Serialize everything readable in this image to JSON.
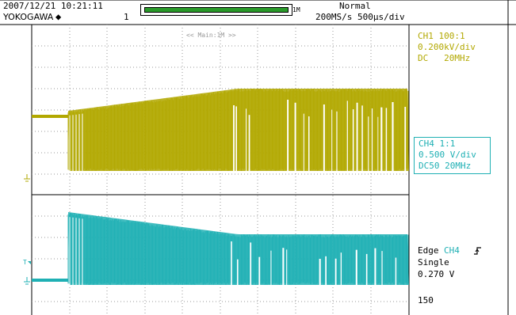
{
  "header": {
    "datetime": "2007/12/21 10:21:11",
    "brand": "YOKOGAWA",
    "brand_icon": "diamond-icon",
    "count": "1",
    "record_length": "1M",
    "trigger_mode": "Normal",
    "sample_rate": "200MS/s 500µs/div",
    "zoom_label": "<< Main:1M >>"
  },
  "colors": {
    "ch1": "#b2a800",
    "ch4": "#1fb0b4",
    "grid": "#999999"
  },
  "ch1": {
    "line1": "CH1 100:1",
    "line2": "0.200kV/div",
    "line3": "DC   20MHz"
  },
  "ch4": {
    "line1": "CH4 1:1",
    "line2": "0.500 V/div",
    "line3": "DC50 20MHz"
  },
  "trigger": {
    "type": "Edge",
    "source": "CH4",
    "slope_icon": "rising-edge-icon",
    "mode": "Single",
    "level": "0.270 V"
  },
  "acq_count": "150"
}
